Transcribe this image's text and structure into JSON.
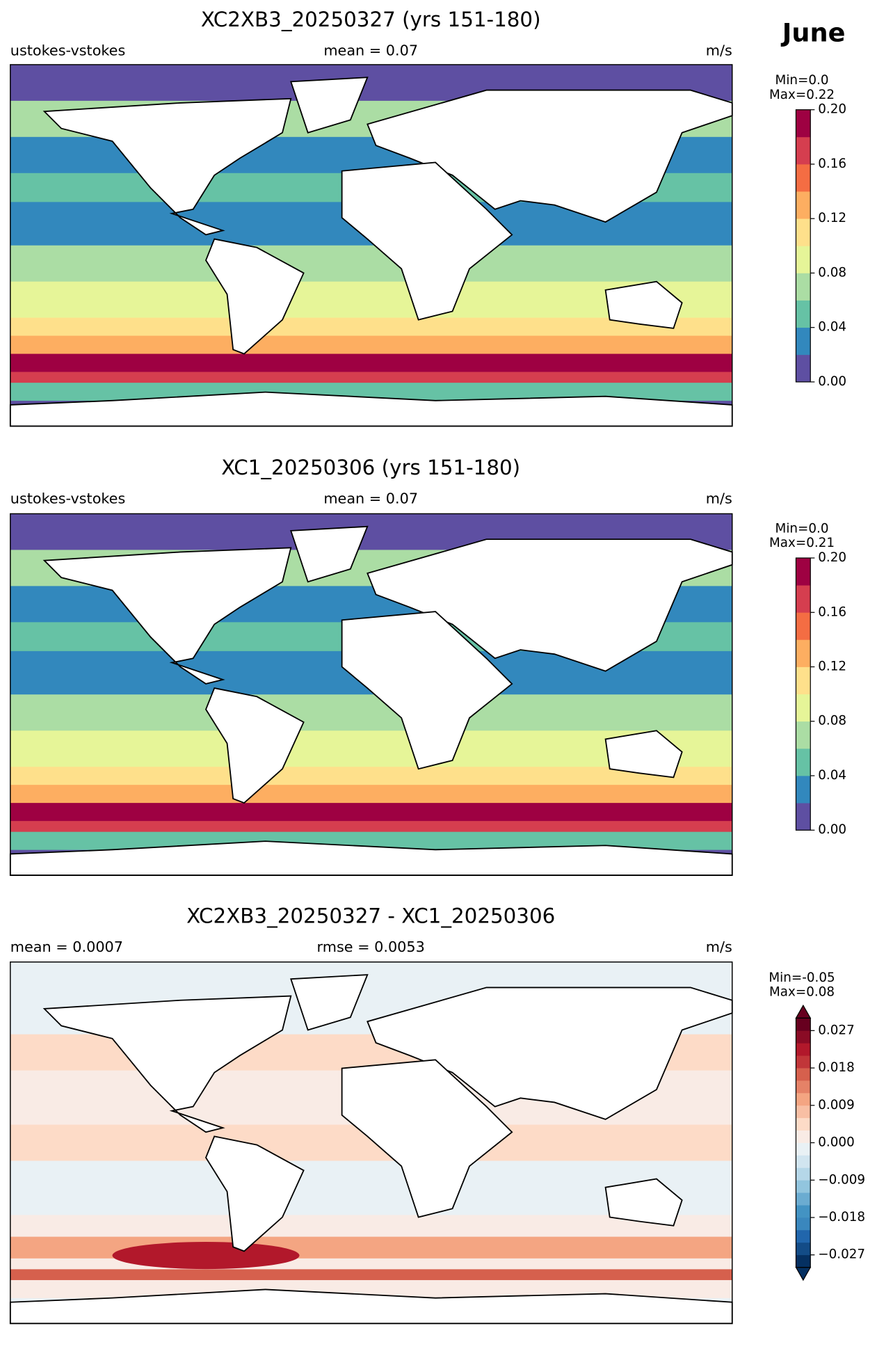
{
  "figure_title": "June",
  "chart_data": [
    {
      "type": "map",
      "title": "XC2XB3_20250327 (yrs 151-180)",
      "left_label": "ustokes-vstokes",
      "center_label": "mean = 0.07",
      "right_label": "m/s",
      "min_label": "Min=0.0",
      "max_label": "Max=0.22",
      "colorbar": {
        "ylim": [
          0,
          0.2
        ],
        "yticks": [
          {
            "value": 0,
            "label": "0.00"
          },
          0.04,
          0.08,
          0.12,
          0.16,
          {
            "value": 0.2,
            "label": "0.20"
          }
        ],
        "colors": [
          "#5e4fa2",
          "#3288bd",
          "#66c2a5",
          "#abdda4",
          "#e6f598",
          "#fee08b",
          "#fdae61",
          "#f46d43",
          "#d53e4f",
          "#9e0142"
        ],
        "extend": "neither"
      }
    },
    {
      "type": "map",
      "title": "XC1_20250306 (yrs 151-180)",
      "left_label": "ustokes-vstokes",
      "center_label": "mean = 0.07",
      "right_label": "m/s",
      "min_label": "Min=0.0",
      "max_label": "Max=0.21",
      "colorbar": {
        "ylim": [
          0,
          0.2
        ],
        "yticks": [
          {
            "value": 0,
            "label": "0.00"
          },
          0.04,
          0.08,
          0.12,
          0.16,
          {
            "value": 0.2,
            "label": "0.20"
          }
        ],
        "colors": [
          "#5e4fa2",
          "#3288bd",
          "#66c2a5",
          "#abdda4",
          "#e6f598",
          "#fee08b",
          "#fdae61",
          "#f46d43",
          "#d53e4f",
          "#9e0142"
        ],
        "extend": "neither"
      }
    },
    {
      "type": "map",
      "title": "XC2XB3_20250327 - XC1_20250306",
      "left_label": "mean = 0.0007",
      "center_label": "rmse = 0.0053",
      "right_label": "m/s",
      "min_label": "Min=-0.05",
      "max_label": "Max=0.08",
      "colorbar": {
        "ylim": [
          -0.03,
          0.03
        ],
        "yticks": [
          {
            "value": -0.027,
            "label": "−0.027"
          },
          {
            "value": -0.018,
            "label": "−0.018"
          },
          {
            "value": -0.009,
            "label": "−0.009"
          },
          {
            "value": 0,
            "label": "0.000"
          },
          0.009,
          0.018,
          0.027
        ],
        "colors": [
          "#053061",
          "#134c87",
          "#2166ac",
          "#3a87bd",
          "#4393c3",
          "#6bacd1",
          "#92c5de",
          "#b5d7e8",
          "#d1e5f0",
          "#e9f1f5",
          "#f9ebe5",
          "#fddbc7",
          "#f8bfa4",
          "#f4a582",
          "#e58267",
          "#d6604d",
          "#c13639",
          "#b2182b",
          "#8a0b25",
          "#67001f"
        ],
        "extend": "both"
      }
    }
  ]
}
